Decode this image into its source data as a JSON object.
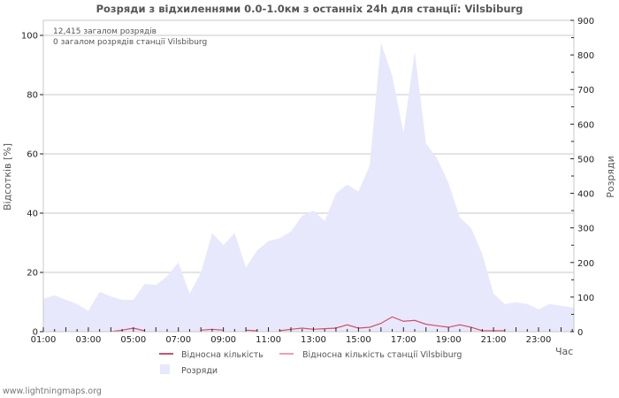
{
  "title": "Розряди з відхиленнями 0.0-1.0км з останніх 24h для станції: Vilsbiburg",
  "info": {
    "line1": "12,415 загалом розрядів",
    "line2": "0 загалом розрядів станції Vilsbiburg"
  },
  "axes": {
    "left_title": "Відсотків  [%]",
    "right_title": "Розряди",
    "x_title": "Час",
    "left_ticks": [
      "0",
      "20",
      "40",
      "60",
      "80",
      "100"
    ],
    "right_ticks": [
      "0",
      "100",
      "200",
      "300",
      "400",
      "500",
      "600",
      "700",
      "800",
      "900"
    ],
    "x_ticks": [
      "01:00",
      "03:00",
      "05:00",
      "07:00",
      "09:00",
      "11:00",
      "13:00",
      "15:00",
      "17:00",
      "19:00",
      "21:00",
      "23:00"
    ]
  },
  "legend": {
    "item1": "Відносна кількість",
    "item2": "Відносна кількість станції Vilsbiburg",
    "item3": "Розряди"
  },
  "colors": {
    "area": "#e8e8fc",
    "relative_line": "#d0506a",
    "station_line": "#f0a0aa",
    "grid": "#c8c8c8"
  },
  "footer": "www.lightningmaps.org",
  "chart_data": {
    "type": "area",
    "title": "Розряди з відхиленнями 0.0-1.0км з останніх 24h для станції: Vilsbiburg",
    "xlabel": "Час",
    "ylabel_left": "Відсотків  [%]",
    "ylabel_right": "Розряди",
    "ylim_left": [
      0,
      100
    ],
    "ylim_right": [
      0,
      900
    ],
    "grid": true,
    "legend_position": "bottom",
    "x": [
      "01:00",
      "01:30",
      "02:00",
      "02:30",
      "03:00",
      "03:30",
      "04:00",
      "04:30",
      "05:00",
      "05:30",
      "06:00",
      "06:30",
      "07:00",
      "07:30",
      "08:00",
      "08:30",
      "09:00",
      "09:30",
      "10:00",
      "10:30",
      "11:00",
      "11:30",
      "12:00",
      "12:30",
      "13:00",
      "13:30",
      "14:00",
      "14:30",
      "15:00",
      "15:30",
      "16:00",
      "16:30",
      "17:00",
      "17:30",
      "18:00",
      "18:30",
      "19:00",
      "19:30",
      "20:00",
      "20:30",
      "21:00",
      "21:30",
      "22:00",
      "22:30",
      "23:00",
      "23:30",
      "00:00",
      "00:30"
    ],
    "series": [
      {
        "name": "Розряди",
        "axis": "right",
        "type": "area",
        "values": [
          95,
          105,
          92,
          80,
          60,
          115,
          102,
          92,
          92,
          138,
          135,
          160,
          200,
          110,
          170,
          285,
          250,
          285,
          185,
          235,
          262,
          270,
          290,
          335,
          350,
          320,
          400,
          425,
          405,
          480,
          835,
          740,
          575,
          810,
          545,
          500,
          430,
          330,
          300,
          225,
          110,
          80,
          85,
          80,
          65,
          80,
          75,
          70
        ]
      },
      {
        "name": "Відносна кількість",
        "axis": "left",
        "type": "line",
        "values": [
          null,
          null,
          null,
          null,
          null,
          null,
          0,
          0.5,
          1.2,
          0.3,
          null,
          null,
          null,
          null,
          0.5,
          0.8,
          0.5,
          null,
          0.5,
          0.3,
          null,
          0.3,
          0.8,
          1.2,
          0.8,
          1.0,
          1.2,
          2.3,
          1.2,
          1.5,
          2.8,
          5.0,
          3.5,
          3.8,
          2.5,
          2.0,
          1.5,
          2.3,
          1.5,
          0.3,
          0.3,
          0.3,
          null,
          null,
          null,
          null,
          null,
          null
        ]
      },
      {
        "name": "Відносна кількість станції Vilsbiburg",
        "axis": "left",
        "type": "line",
        "values": []
      }
    ]
  }
}
